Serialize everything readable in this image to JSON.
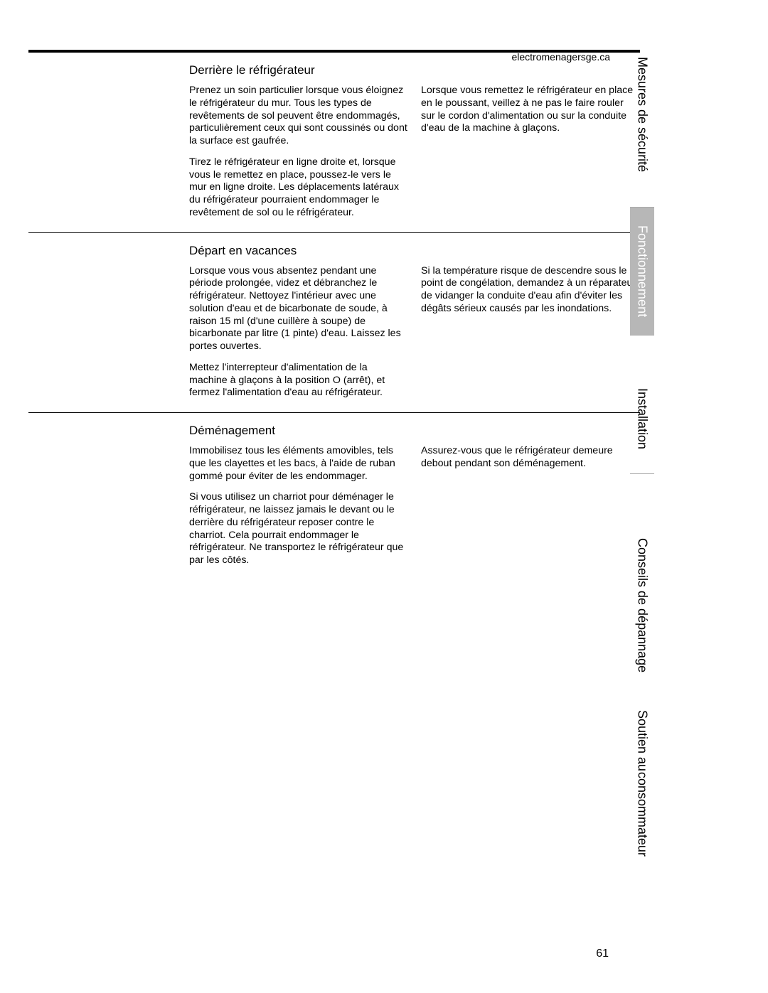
{
  "header": {
    "url": "electromenagersge.ca"
  },
  "sections": {
    "s1": {
      "title": "Derrière le réfrigérateur",
      "left": {
        "p1": "Prenez un soin particulier lorsque vous éloignez le réfrigérateur du mur. Tous les types de revêtements de sol peuvent être endommagés, particulièrement ceux qui sont coussinés ou dont la surface est gaufrée.",
        "p2": "Tirez le réfrigérateur en ligne droite et, lorsque vous le remettez en place, poussez-le vers le mur en ligne droite. Les déplacements latéraux du réfrigérateur pourraient endommager le revêtement de sol ou le réfrigérateur."
      },
      "right": {
        "p1": "Lorsque vous remettez le réfrigérateur en place en le poussant, veillez à ne pas le faire rouler sur le cordon d'alimentation ou sur la conduite d'eau de la machine à glaçons."
      }
    },
    "s2": {
      "title": "Départ en vacances",
      "left": {
        "p1": "Lorsque vous vous absentez pendant une période prolongée, videz et débranchez le réfrigérateur. Nettoyez l'intérieur avec une solution d'eau et de bicarbonate de soude, à raison 15 ml (d'une cuillère à soupe) de bicarbonate par litre (1 pinte) d'eau. Laissez les portes ouvertes.",
        "p2": "Mettez l'interrepteur d'alimentation de la machine à glaçons à la position O (arrêt), et fermez l'alimentation d'eau au réfrigérateur."
      },
      "right": {
        "p1": "Si la température risque de descendre sous le point de congélation, demandez à un réparateur de vidanger la conduite d'eau afin d'éviter les dégâts sérieux causés par les inondations."
      }
    },
    "s3": {
      "title": "Déménagement",
      "left": {
        "p1": "Immobilisez tous les éléments amovibles, tels que les clayettes et les bacs, à l'aide de ruban gommé pour éviter de les endommager.",
        "p2": "Si vous utilisez un charriot pour déménager le réfrigérateur, ne laissez jamais le devant ou le derrière du réfrigérateur reposer contre le charriot. Cela pourrait endommager le réfrigérateur. Ne transportez le réfrigérateur que par les côtés."
      },
      "right": {
        "p1": "Assurez-vous que le réfrigérateur demeure debout pendant son déménagement."
      }
    }
  },
  "sidebar": {
    "tabs": {
      "securite": "Mesures de sécurité",
      "fonctionnement": "Fonctionnement",
      "installation": "Installation",
      "conseils": "Conseils de dépannage",
      "soutien_l1": "Soutien au",
      "soutien_l2": "consommateur"
    }
  },
  "page_number": "61"
}
